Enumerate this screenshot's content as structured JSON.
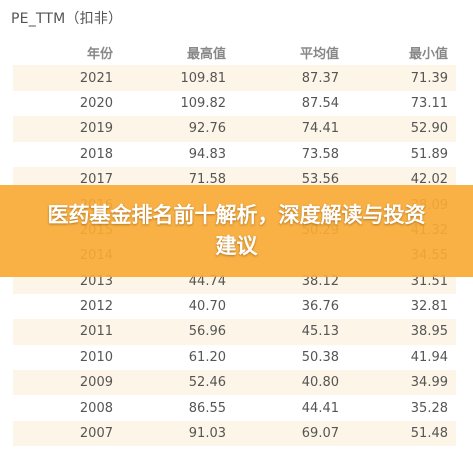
{
  "title": "PE_TTM（扣非）",
  "table": {
    "headers": [
      "年份",
      "最高值",
      "平均值",
      "最小值"
    ],
    "rows": [
      [
        "2021",
        "109.81",
        "87.37",
        "71.39"
      ],
      [
        "2020",
        "109.82",
        "87.54",
        "73.11"
      ],
      [
        "2019",
        "92.76",
        "74.41",
        "52.90"
      ],
      [
        "2018",
        "94.83",
        "73.58",
        "51.89"
      ],
      [
        "2017",
        "71.58",
        "53.56",
        "42.02"
      ],
      [
        "2016",
        "",
        "",
        "38.09"
      ],
      [
        "2015",
        "",
        "50.29",
        "41.32"
      ],
      [
        "2014",
        "",
        "",
        "34.55"
      ],
      [
        "2013",
        "44.74",
        "38.12",
        "31.51"
      ],
      [
        "2012",
        "40.70",
        "36.76",
        "32.81"
      ],
      [
        "2011",
        "56.96",
        "45.13",
        "38.95"
      ],
      [
        "2010",
        "61.20",
        "50.38",
        "41.94"
      ],
      [
        "2009",
        "52.46",
        "40.80",
        "34.99"
      ],
      [
        "2008",
        "86.55",
        "44.41",
        "35.28"
      ],
      [
        "2007",
        "91.03",
        "69.07",
        "51.48"
      ]
    ]
  },
  "banner": {
    "text": "医药基金排名前十解析，深度解读与投资建议",
    "color": "#f8aa36"
  }
}
